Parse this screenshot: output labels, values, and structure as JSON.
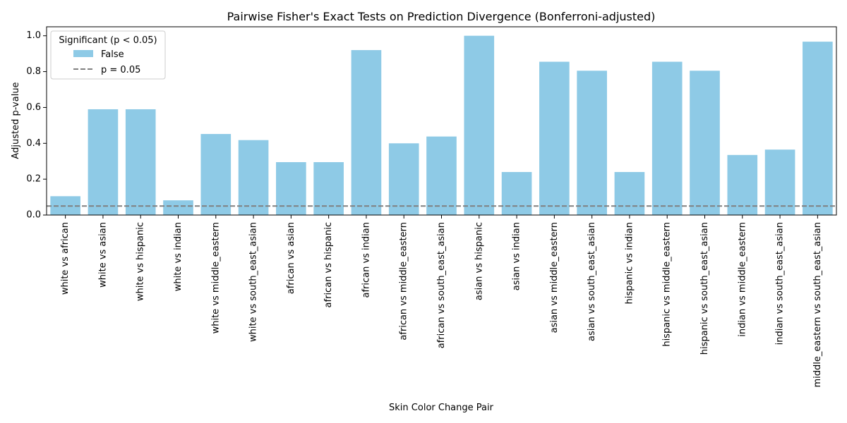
{
  "chart_data": {
    "type": "bar",
    "title": "Pairwise Fisher's Exact Tests on Prediction Divergence (Bonferroni-adjusted)",
    "xlabel": "Skin Color Change Pair",
    "ylabel": "Adjusted p-value",
    "ylim": [
      0,
      1.05
    ],
    "yticks": [
      "0.0",
      "0.2",
      "0.4",
      "0.6",
      "0.8",
      "1.0"
    ],
    "categories": [
      "white vs african",
      "white vs asian",
      "white vs hispanic",
      "white vs indian",
      "white vs middle_eastern",
      "white vs south_east_asian",
      "african vs asian",
      "african vs hispanic",
      "african vs indian",
      "african vs middle_eastern",
      "african vs south_east_asian",
      "asian vs hispanic",
      "asian vs indian",
      "asian vs middle_eastern",
      "asian vs south_east_asian",
      "hispanic vs indian",
      "hispanic vs middle_eastern",
      "hispanic vs south_east_asian",
      "indian vs middle_eastern",
      "indian vs south_east_asian",
      "middle_eastern vs south_east_asian"
    ],
    "series": [
      {
        "name": "False",
        "color": "#8ecae6",
        "values": [
          0.105,
          0.59,
          0.59,
          0.082,
          0.452,
          0.418,
          0.295,
          0.295,
          0.92,
          0.4,
          0.438,
          1.0,
          0.24,
          0.855,
          0.805,
          0.24,
          0.855,
          0.805,
          0.335,
          0.365,
          0.967
        ]
      }
    ],
    "reference_line": {
      "value": 0.05,
      "label": "p = 0.05",
      "color": "#808080",
      "style": "dashed"
    },
    "legend": {
      "title": "Significant (p < 0.05)",
      "placement": "top-left"
    },
    "grid": false
  }
}
